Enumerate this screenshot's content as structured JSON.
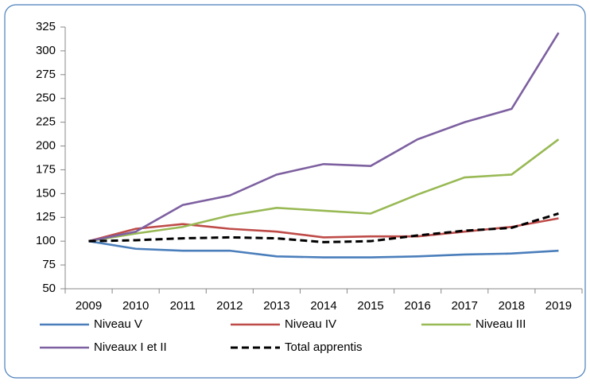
{
  "chart_data": {
    "type": "line",
    "categories": [
      "2009",
      "2010",
      "2011",
      "2012",
      "2013",
      "2014",
      "2015",
      "2016",
      "2017",
      "2018",
      "2019"
    ],
    "series": [
      {
        "name": "Niveau V",
        "color": "#4a7ebb",
        "values": [
          100,
          92,
          90,
          90,
          84,
          83,
          83,
          84,
          86,
          87,
          90
        ]
      },
      {
        "name": "Niveau IV",
        "color": "#be4b48",
        "values": [
          100,
          113,
          118,
          113,
          110,
          104,
          105,
          105,
          110,
          115,
          124
        ]
      },
      {
        "name": "Niveau III",
        "color": "#98b954",
        "values": [
          100,
          108,
          115,
          127,
          135,
          132,
          129,
          149,
          167,
          170,
          207
        ]
      },
      {
        "name": "Niveaux I et II",
        "color": "#7d60a0",
        "values": [
          100,
          110,
          138,
          148,
          170,
          181,
          179,
          207,
          225,
          239,
          319
        ]
      },
      {
        "name": "Total apprentis",
        "color": "#000000",
        "dashed": true,
        "values": [
          100,
          101,
          103,
          104,
          103,
          99,
          100,
          106,
          111,
          114,
          129
        ]
      }
    ],
    "ylim": [
      50,
      325
    ],
    "yticks": [
      50,
      75,
      100,
      125,
      150,
      175,
      200,
      225,
      250,
      275,
      300,
      325
    ],
    "grid": false
  }
}
